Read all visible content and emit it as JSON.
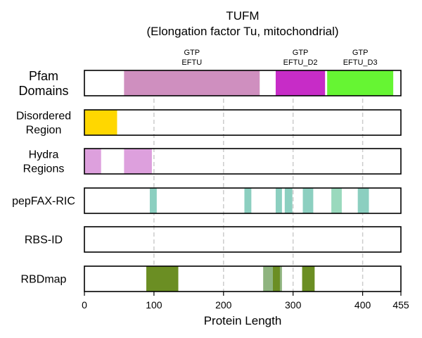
{
  "chart_data": {
    "type": "bar",
    "title": "TUFM",
    "subtitle": "(Elongation factor Tu, mitochondrial)",
    "xlabel": "Protein Length",
    "xlim": [
      0,
      455
    ],
    "xticks": [
      0,
      100,
      200,
      300,
      400,
      455
    ],
    "grid": "vertical dashed at 100, 200, 300, 400",
    "tracks": [
      {
        "label_lines": [
          "Pfam",
          "Domains"
        ],
        "segments": [
          {
            "start": 57,
            "end": 252,
            "color": "#cf8fbf",
            "label_lines": [
              "GTP",
              "EFTU"
            ]
          },
          {
            "start": 275,
            "end": 346,
            "color": "#c72cc7",
            "label_lines": [
              "GTP",
              "EFTU_D2"
            ]
          },
          {
            "start": 349,
            "end": 444,
            "color": "#66f533",
            "label_lines": [
              "GTP",
              "EFTU_D3"
            ]
          }
        ]
      },
      {
        "label_lines": [
          "Disordered",
          "Region"
        ],
        "segments": [
          {
            "start": 0,
            "end": 47,
            "color": "#ffd700"
          }
        ]
      },
      {
        "label_lines": [
          "Hydra",
          "Regions"
        ],
        "segments": [
          {
            "start": 0,
            "end": 24,
            "color": "#dda0dd"
          },
          {
            "start": 57,
            "end": 97,
            "color": "#dda0dd"
          }
        ]
      },
      {
        "label_lines": [
          "pepFAX-RIC"
        ],
        "segments": [
          {
            "start": 94,
            "end": 104,
            "color": "#8ccfc0"
          },
          {
            "start": 230,
            "end": 240,
            "color": "#8ccfc0"
          },
          {
            "start": 275,
            "end": 284,
            "color": "#8ccfc0"
          },
          {
            "start": 288,
            "end": 299,
            "color": "#8ccfc0"
          },
          {
            "start": 314,
            "end": 329,
            "color": "#8ccfc0"
          },
          {
            "start": 355,
            "end": 370,
            "color": "#9ad9bd"
          },
          {
            "start": 393,
            "end": 409,
            "color": "#8ccfc0"
          }
        ]
      },
      {
        "label_lines": [
          "RBS-ID"
        ],
        "segments": []
      },
      {
        "label_lines": [
          "RBDmap"
        ],
        "segments": [
          {
            "start": 89,
            "end": 135,
            "color": "#6b8e23"
          },
          {
            "start": 257,
            "end": 284,
            "color": "#8fb47f"
          },
          {
            "start": 271,
            "end": 281,
            "color": "#6b8e23"
          },
          {
            "start": 313,
            "end": 331,
            "color": "#6b8e23"
          }
        ]
      }
    ]
  }
}
